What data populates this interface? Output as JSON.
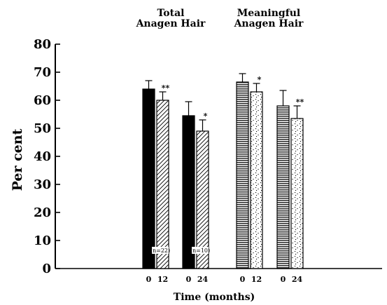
{
  "chart_data": {
    "type": "bar",
    "title": "",
    "xlabel": "Time (months)",
    "ylabel": "Per cent",
    "ylim": [
      0,
      80
    ],
    "yticks": [
      0,
      10,
      20,
      30,
      40,
      50,
      60,
      70,
      80
    ],
    "grid": false,
    "groups": [
      {
        "title_lines": [
          "Total",
          "Anagen Hair"
        ],
        "comparisons": [
          {
            "n_label": "(n=22)",
            "bars": [
              {
                "category": "0",
                "value": 64,
                "err": 3,
                "style": "solid-black",
                "sig": ""
              },
              {
                "category": "12",
                "value": 60,
                "err": 3,
                "style": "diagonal-hatch",
                "sig": "**"
              }
            ]
          },
          {
            "n_label": "(n=10)",
            "bars": [
              {
                "category": "0",
                "value": 54.5,
                "err": 5,
                "style": "solid-black",
                "sig": ""
              },
              {
                "category": "24",
                "value": 49,
                "err": 4,
                "style": "diagonal-hatch",
                "sig": "*"
              }
            ]
          }
        ]
      },
      {
        "title_lines": [
          "Meaningful",
          "Anagen Hair"
        ],
        "comparisons": [
          {
            "n_label": "",
            "bars": [
              {
                "category": "0",
                "value": 66.5,
                "err": 3,
                "style": "horizontal-lines",
                "sig": ""
              },
              {
                "category": "12",
                "value": 63,
                "err": 3,
                "style": "dotted",
                "sig": "*"
              }
            ]
          },
          {
            "n_label": "",
            "bars": [
              {
                "category": "0",
                "value": 58,
                "err": 5.5,
                "style": "horizontal-lines",
                "sig": ""
              },
              {
                "category": "24",
                "value": 53.5,
                "err": 4.5,
                "style": "dotted",
                "sig": "**"
              }
            ]
          }
        ]
      }
    ]
  }
}
